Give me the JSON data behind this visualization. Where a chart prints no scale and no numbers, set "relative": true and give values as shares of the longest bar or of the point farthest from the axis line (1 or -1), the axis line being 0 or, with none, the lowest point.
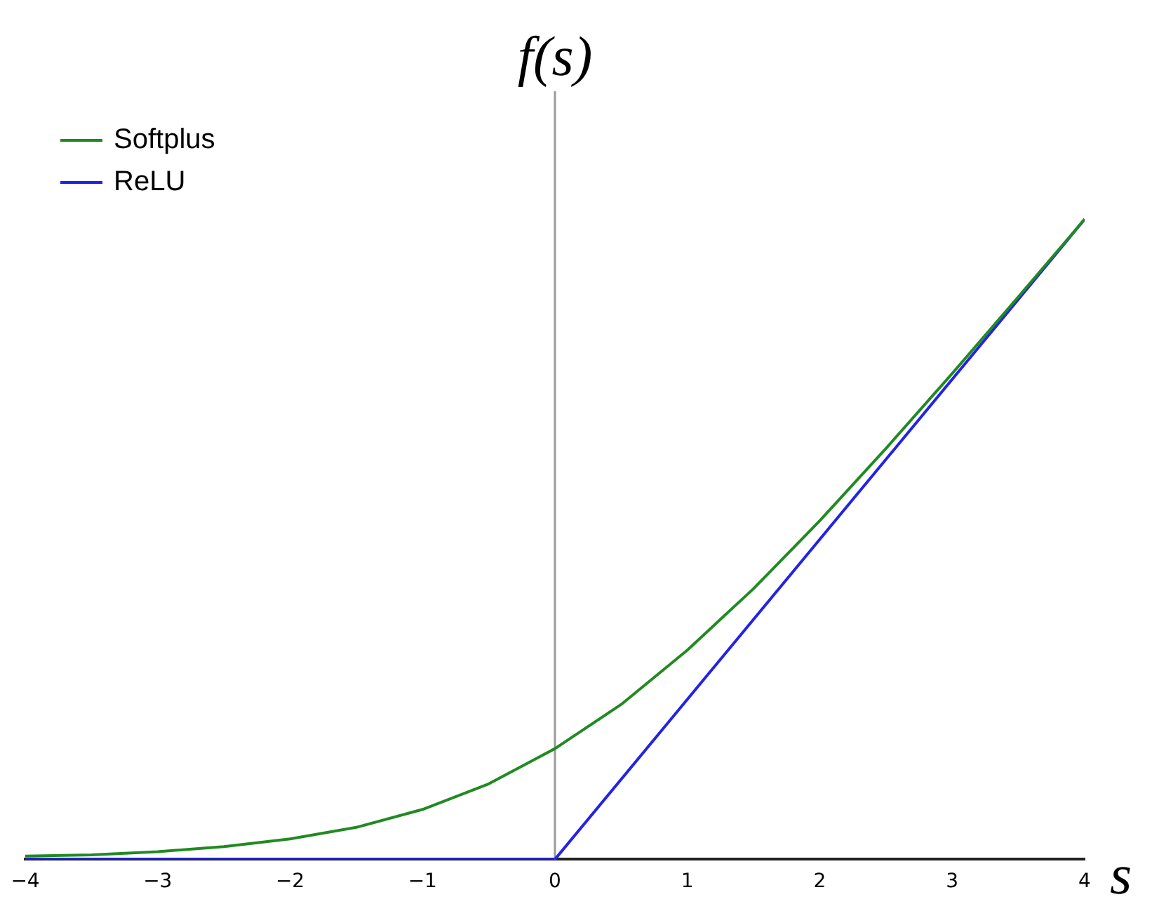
{
  "chart_data": {
    "type": "line",
    "ylabel": "f(s)",
    "xlabel": "s",
    "relative": true,
    "xlim": [
      -4,
      4
    ],
    "xticks": [
      -4,
      -3,
      -2,
      -1,
      0,
      1,
      2,
      3,
      4
    ],
    "series": [
      {
        "name": "Softplus",
        "color": "#218a21",
        "x": [
          -4,
          -3.5,
          -3,
          -2.5,
          -2,
          -1.5,
          -1,
          -0.5,
          0,
          0.5,
          1,
          1.5,
          2,
          2.5,
          3,
          3.5,
          4
        ],
        "values": [
          0.005,
          0.007,
          0.012,
          0.02,
          0.032,
          0.05,
          0.078,
          0.118,
          0.173,
          0.242,
          0.327,
          0.423,
          0.529,
          0.642,
          0.759,
          0.879,
          1
        ]
      },
      {
        "name": "ReLU",
        "color": "#2323e6",
        "x": [
          -4,
          0,
          4
        ],
        "values": [
          0,
          0,
          1
        ]
      }
    ],
    "ref_lines": [
      {
        "axis": "x",
        "value": 0,
        "color": "#999999"
      }
    ],
    "legend": "top left",
    "grid": false,
    "marker": "none",
    "line_style": "solid"
  }
}
